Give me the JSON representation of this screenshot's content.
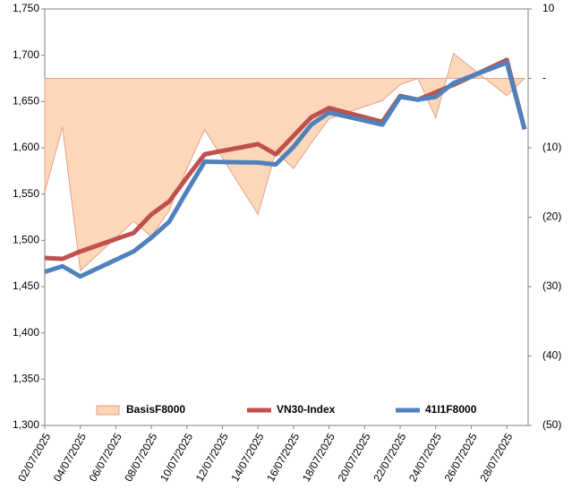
{
  "chart_data": {
    "type": "line",
    "x": [
      "02/07/2025",
      "03/07/2025",
      "04/07/2025",
      "07/07/2025",
      "08/07/2025",
      "09/07/2025",
      "10/07/2025",
      "11/07/2025",
      "14/07/2025",
      "15/07/2025",
      "16/07/2025",
      "17/07/2025",
      "18/07/2025",
      "21/07/2025",
      "22/07/2025",
      "23/07/2025",
      "24/07/2025",
      "25/07/2025",
      "28/07/2025",
      "29/07/2025"
    ],
    "series": [
      {
        "name": "BasisF8000",
        "type": "area",
        "axis": "y2",
        "color": "#fcd5b5",
        "values": [
          -16.4,
          -7,
          -27.7,
          -20.6,
          -22.8,
          -19,
          -13,
          -7.4,
          -19.6,
          -10.6,
          -13,
          -9.3,
          -5.8,
          -3.2,
          -0.9,
          0,
          -5.7,
          3.6,
          -2.5,
          0
        ]
      },
      {
        "name": "VN30-Index",
        "type": "line",
        "color": "#c0504d",
        "values": [
          1481,
          1480,
          1488,
          1508,
          1528,
          1542,
          1568,
          1593,
          1604,
          1593,
          1613,
          1633,
          1643,
          1628,
          1656,
          1652,
          1660,
          1668,
          1695,
          1620
        ]
      },
      {
        "name": "41I1F8000",
        "type": "line",
        "color": "#4f81bd",
        "values": [
          1466,
          1472,
          1461,
          1488,
          1503,
          1520,
          1553,
          1585,
          1584,
          1582,
          1601,
          1625,
          1638,
          1625,
          1655,
          1652,
          1655,
          1670,
          1692,
          1620
        ]
      }
    ],
    "xlim": [
      "02/07/2025",
      "29/07/2025"
    ],
    "xticks": [
      "02/07/2025",
      "04/07/2025",
      "06/07/2025",
      "08/07/2025",
      "10/07/2025",
      "12/07/2025",
      "14/07/2025",
      "16/07/2025",
      "18/07/2025",
      "20/07/2025",
      "22/07/2025",
      "24/07/2025",
      "26/07/2025",
      "28/07/2025"
    ],
    "ylim": [
      1300,
      1750
    ],
    "yticks": [
      {
        "value": 1300,
        "label": "1,300"
      },
      {
        "value": 1350,
        "label": "1,350"
      },
      {
        "value": 1400,
        "label": "1,400"
      },
      {
        "value": 1450,
        "label": "1,450"
      },
      {
        "value": 1500,
        "label": "1,500"
      },
      {
        "value": 1550,
        "label": "1,550"
      },
      {
        "value": 1600,
        "label": "1,600"
      },
      {
        "value": 1650,
        "label": "1,650"
      },
      {
        "value": 1700,
        "label": "1,700"
      },
      {
        "value": 1750,
        "label": "1,750"
      }
    ],
    "y2lim": [
      -50,
      10
    ],
    "y2ticks": [
      10,
      {
        "value": 0,
        "label": "-"
      },
      {
        "value": -10,
        "label": "(10)"
      },
      {
        "value": -20,
        "label": "(20)"
      },
      {
        "value": -30,
        "label": "(30)"
      },
      {
        "value": -40,
        "label": "(40)"
      },
      {
        "value": -50,
        "label": "(50)"
      }
    ],
    "legend": "bottom"
  }
}
